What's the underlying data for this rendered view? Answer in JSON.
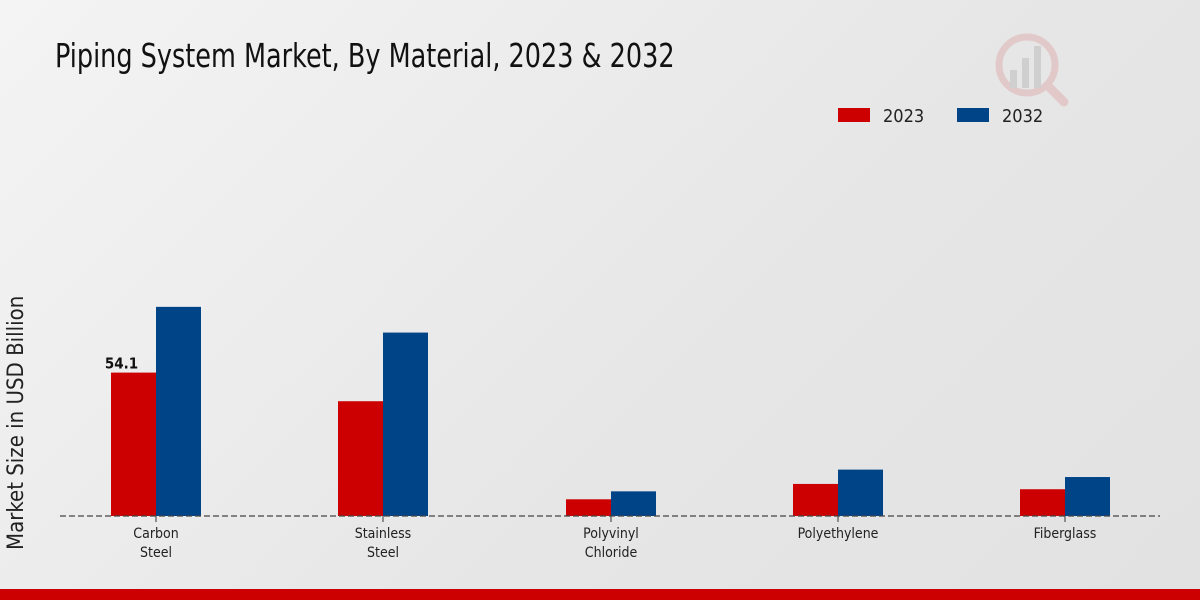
{
  "chart_data": {
    "type": "bar",
    "title": "Piping System Market, By Material, 2023 & 2032",
    "xlabel": "",
    "ylabel": "Market Size in USD Billion",
    "categories": [
      [
        "Carbon",
        "Steel"
      ],
      [
        "Stainless",
        "Steel"
      ],
      [
        "Polyvinyl",
        "Chloride"
      ],
      [
        "Polyethylene"
      ],
      [
        "Fiberglass"
      ]
    ],
    "series": [
      {
        "name": "2023",
        "color": "#cc0000",
        "values": [
          54.1,
          43.3,
          6.3,
          12.1,
          10.1
        ]
      },
      {
        "name": "2032",
        "color": "#004488",
        "values": [
          78.9,
          69.2,
          9.3,
          17.5,
          14.7
        ]
      }
    ],
    "data_labels": [
      {
        "series": 0,
        "index": 0,
        "text": "54.1"
      }
    ],
    "ylim": [
      0,
      150
    ],
    "grid": false,
    "legend_position": "top-right"
  }
}
